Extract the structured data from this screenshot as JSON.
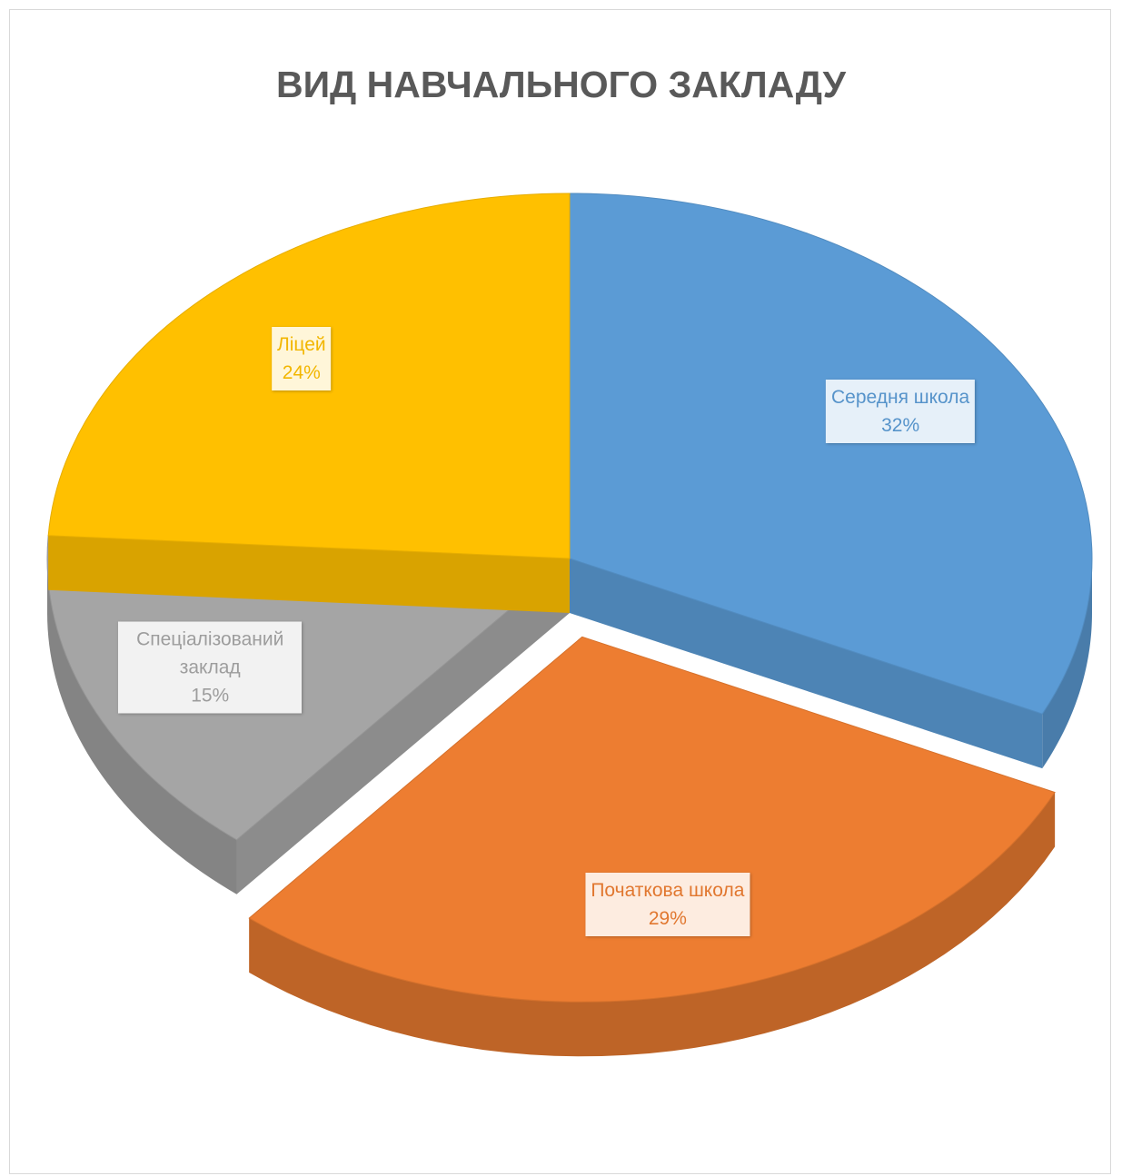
{
  "chart_data": {
    "type": "pie",
    "title": "ВИД НАВЧАЛЬНОГО ЗАКЛАДУ",
    "categories": [
      "Середня школа",
      "Початкова школа",
      "Спеціалізований заклад",
      "Ліцей"
    ],
    "values": [
      32,
      29,
      15,
      24
    ],
    "value_labels": [
      "32%",
      "29%",
      "15%",
      "24%"
    ],
    "colors": [
      "#5b9bd5",
      "#ed7d31",
      "#a5a5a5",
      "#ffc000"
    ],
    "explode": [
      0,
      0.22,
      0,
      0
    ]
  }
}
